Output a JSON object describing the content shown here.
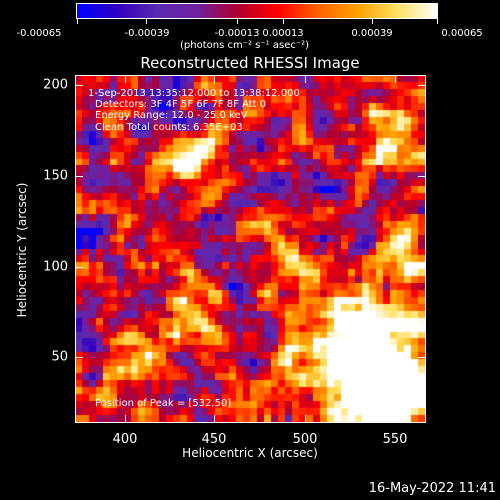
{
  "colorbar": {
    "tick_labels": [
      "-0.00065",
      "-0.00039",
      "-0.00013",
      "0.00013",
      "0.00039",
      "0.00065"
    ],
    "units": "(photons cm⁻² s⁻¹ asec⁻²)",
    "colors": [
      "#0000ff",
      "#3000c0",
      "#5a2ab0",
      "#7020a0",
      "#b00030",
      "#ff0000",
      "#ff6000",
      "#ffa000",
      "#ffe060",
      "#ffffff"
    ]
  },
  "title": "Reconstructed RHESSI Image",
  "annotations": {
    "time": "1-Sep-2013 13:35:12.000 to 13:38:12.000",
    "detectors": "Detectors: 3F 4F 5F 6F 7F 8F  Att 0",
    "energy": "Energy Range: 12.0 - 25.0 keV",
    "clean": "Clean    Total counts: 6.35E+03",
    "peak": "Position of Peak = [532,50]"
  },
  "axes": {
    "xlabel": "Heliocentric X (arcsec)",
    "ylabel": "Heliocentric Y (arcsec)",
    "xticks": [
      "400",
      "450",
      "500",
      "550"
    ],
    "yticks": [
      "200",
      "150",
      "100",
      "50"
    ],
    "xlim": [
      372,
      566
    ],
    "ylim": [
      14,
      206
    ]
  },
  "footer": {
    "date": "16-May-2022 11:41"
  }
}
